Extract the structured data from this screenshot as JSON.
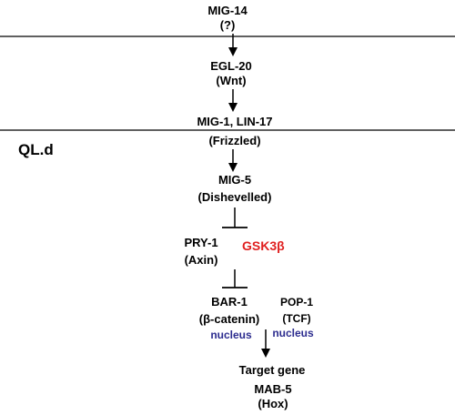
{
  "colors": {
    "text": "#000000",
    "gsk": "#e02020",
    "nucleus": "#2d2d8f",
    "line": "#000000"
  },
  "nodes": {
    "mig14": {
      "name": "MIG-14",
      "sub": "(?)"
    },
    "egl20": {
      "name": "EGL-20",
      "sub": "(Wnt)"
    },
    "mig1_lin17": {
      "name": "MIG-1, LIN-17",
      "sub": "(Frizzled)"
    },
    "ql_d": "QL.d",
    "mig5": {
      "name": "MIG-5",
      "sub": "(Dishevelled)"
    },
    "pry1": {
      "name": "PRY-1",
      "sub": "(Axin)"
    },
    "gsk3b": "GSK3β",
    "bar1": {
      "name": "BAR-1",
      "sub": "(β-catenin)",
      "location": "nucleus"
    },
    "pop1": {
      "name": "POP-1",
      "sub": "(TCF)",
      "location": "nucleus"
    },
    "target_gene": "Target gene",
    "mab5": {
      "name": "MAB-5",
      "sub": "(Hox)"
    }
  }
}
